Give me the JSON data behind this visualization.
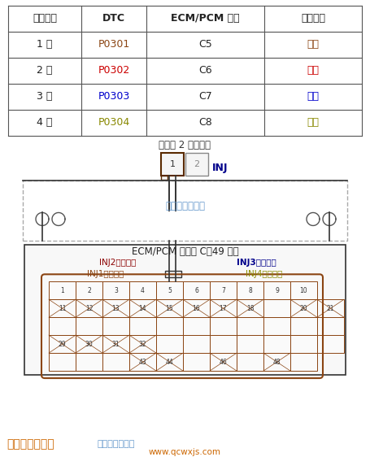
{
  "bg_color": "#ffffff",
  "table": {
    "headers": [
      "故障气缸",
      "DTC",
      "ECM/PCM 端子",
      "线束颜色"
    ],
    "rows": [
      [
        "1 号",
        "P0301",
        "C5",
        "棕色"
      ],
      [
        "2 号",
        "P0302",
        "C6",
        "红色"
      ],
      [
        "3 号",
        "P0303",
        "C7",
        "蓝色"
      ],
      [
        "4 号",
        "P0304",
        "C8",
        "黄色"
      ]
    ],
    "dtc_colors": [
      "#8B4513",
      "#cc0000",
      "#0000cc",
      "#888800"
    ],
    "color_colors": [
      "#8B4513",
      "#cc0000",
      "#0000cc",
      "#888800"
    ]
  },
  "injector_label": "喷油器 2 针插接器",
  "inj_label": "INJ",
  "inj_label_color": "#00008B",
  "harness_label": "阴端子的线束侧",
  "harness_label_color": "#6699cc",
  "ecm_label": "ECM/PCM 插接器 C（49 针）",
  "inj_labels": [
    {
      "text": "INJ2（红色）",
      "color": "#8B0000"
    },
    {
      "text": "INJ3（蓝色）",
      "color": "#00008B"
    },
    {
      "text": "INJ1（棕色）",
      "color": "#8B4513"
    },
    {
      "text": "INJ4（黄色）",
      "color": "#8B8B00"
    }
  ],
  "connector_rows": [
    [
      1,
      2,
      3,
      4,
      5,
      6,
      7,
      8,
      9,
      10
    ],
    [
      11,
      12,
      13,
      14,
      15,
      16,
      17,
      18,
      "",
      20,
      21
    ],
    [
      "",
      "",
      "",
      "",
      "",
      "",
      "",
      "",
      "",
      "",
      ""
    ],
    [
      29,
      30,
      31,
      32,
      "",
      "",
      "",
      "",
      "",
      "",
      ""
    ],
    [
      "",
      "",
      "",
      43,
      44,
      "",
      46,
      "",
      48,
      ""
    ]
  ],
  "footer_label1": "汽车维修技术网",
  "footer_label1_color": "#cc6600",
  "footer_label2": "阴端子的端子侧",
  "footer_label2_color": "#6699cc",
  "footer_url": "www.qcwxjs.com",
  "footer_url_color": "#cc6600"
}
